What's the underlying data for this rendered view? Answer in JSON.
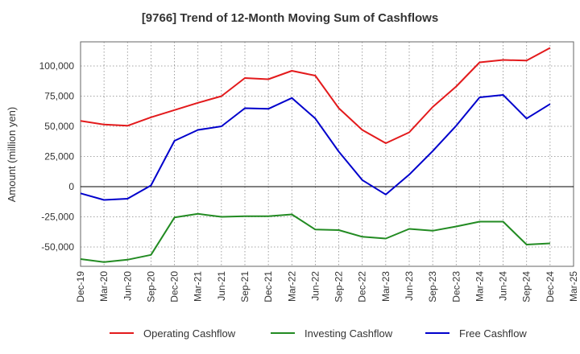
{
  "chart_data": {
    "type": "line",
    "title": "[9766]  Trend of 12-Month Moving Sum of Cashflows",
    "xlabel": "",
    "ylabel": "Amount (million yen)",
    "categories": [
      "Dec-19",
      "Mar-20",
      "Jun-20",
      "Sep-20",
      "Dec-20",
      "Mar-21",
      "Jun-21",
      "Sep-21",
      "Dec-21",
      "Mar-22",
      "Jun-22",
      "Sep-22",
      "Dec-22",
      "Mar-23",
      "Jun-23",
      "Sep-23",
      "Dec-23",
      "Mar-24",
      "Jun-24",
      "Sep-24",
      "Dec-24",
      "Mar-25"
    ],
    "yticks": [
      -50000,
      -25000,
      0,
      25000,
      50000,
      75000,
      100000
    ],
    "ytick_labels": [
      "-50,000",
      "-25,000",
      "0",
      "25,000",
      "50,000",
      "75,000",
      "100,000"
    ],
    "ylim": [
      -66000,
      120000
    ],
    "grid": true,
    "legend_position": "bottom",
    "series": [
      {
        "name": "Operating Cashflow",
        "color": "#e31a1c",
        "values": [
          54500,
          51500,
          50500,
          57500,
          63500,
          69500,
          75000,
          90000,
          89000,
          96000,
          92000,
          65000,
          47000,
          36000,
          45000,
          66000,
          83000,
          103000,
          105000,
          104500,
          115000,
          null
        ]
      },
      {
        "name": "Investing Cashflow",
        "color": "#228b22",
        "values": [
          -60000,
          -62500,
          -60500,
          -56500,
          -25500,
          -22500,
          -25000,
          -24500,
          -24500,
          -23000,
          -35500,
          -36000,
          -41500,
          -43000,
          -35000,
          -36500,
          -33000,
          -29000,
          -29000,
          -48000,
          -47000,
          null
        ]
      },
      {
        "name": "Free Cashflow",
        "color": "#0000cc",
        "values": [
          -5500,
          -11000,
          -10000,
          1000,
          38000,
          47000,
          50000,
          65000,
          64500,
          73500,
          56500,
          29000,
          5500,
          -6500,
          10000,
          29500,
          50500,
          74000,
          76000,
          56500,
          68500,
          null
        ]
      }
    ]
  }
}
